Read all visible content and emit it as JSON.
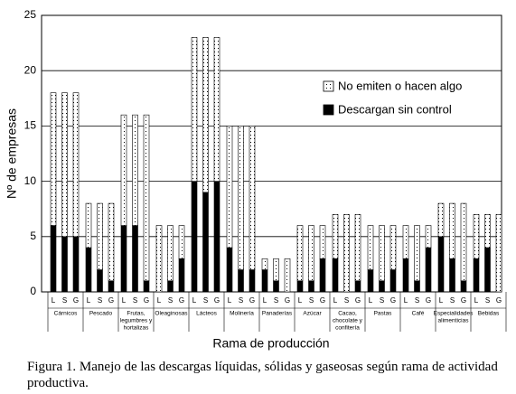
{
  "chart_data": {
    "type": "stacked_bar",
    "y_label": "Nº de empresas",
    "x_label": "Rama de producción",
    "caption": "Figura 1. Manejo de las descargas líquidas, sólidas y gaseosas según rama de actividad productiva.",
    "categories": [
      "L",
      "S",
      "G",
      "L",
      "S",
      "G",
      "L",
      "S",
      "G",
      "L",
      "S",
      "G",
      "L",
      "S",
      "G",
      "L",
      "S",
      "G",
      "L",
      "S",
      "G",
      "L",
      "S",
      "G",
      "L",
      "S",
      "G",
      "L",
      "S",
      "G",
      "L",
      "S",
      "G",
      "L",
      "S",
      "G",
      "L",
      "S",
      "G"
    ],
    "groups": [
      [
        "Cárnicos"
      ],
      [
        "Pescado"
      ],
      [
        "Frutas,",
        "legumbres y",
        "hortalizas"
      ],
      [
        "Oleaginosas"
      ],
      [
        "Lácteos"
      ],
      [
        "Molinería"
      ],
      [
        "Panaderías"
      ],
      [
        "Azúcar"
      ],
      [
        "Cacao,",
        "chocolate y",
        "confitería"
      ],
      [
        "Pastas"
      ],
      [
        "Café"
      ],
      [
        "Especialidades",
        "alimenticias"
      ],
      [
        "Bebidas"
      ]
    ],
    "series": [
      {
        "name": "Descargan sin control",
        "color": "#000000",
        "pattern": "solid",
        "values": [
          6,
          5,
          5,
          4,
          2,
          1,
          6,
          6,
          1,
          0,
          1,
          3,
          10,
          9,
          10,
          4,
          2,
          2,
          2,
          1,
          0,
          1,
          1,
          3,
          3,
          0,
          1,
          2,
          1,
          2,
          3,
          1,
          4,
          5,
          3,
          1,
          3,
          4,
          0
        ]
      },
      {
        "name": "No emiten o hacen algo",
        "color": "#000000",
        "pattern": "dots",
        "values": [
          12,
          13,
          13,
          4,
          6,
          7,
          10,
          10,
          15,
          6,
          5,
          3,
          13,
          14,
          13,
          11,
          13,
          13,
          1,
          2,
          3,
          5,
          5,
          3,
          4,
          7,
          6,
          4,
          5,
          4,
          3,
          5,
          2,
          3,
          5,
          7,
          4,
          3,
          7
        ]
      }
    ],
    "ylim": [
      0,
      25
    ],
    "yticks": [
      0,
      5,
      10,
      15,
      20,
      25
    ],
    "grid": true,
    "legend": "upper-right"
  }
}
